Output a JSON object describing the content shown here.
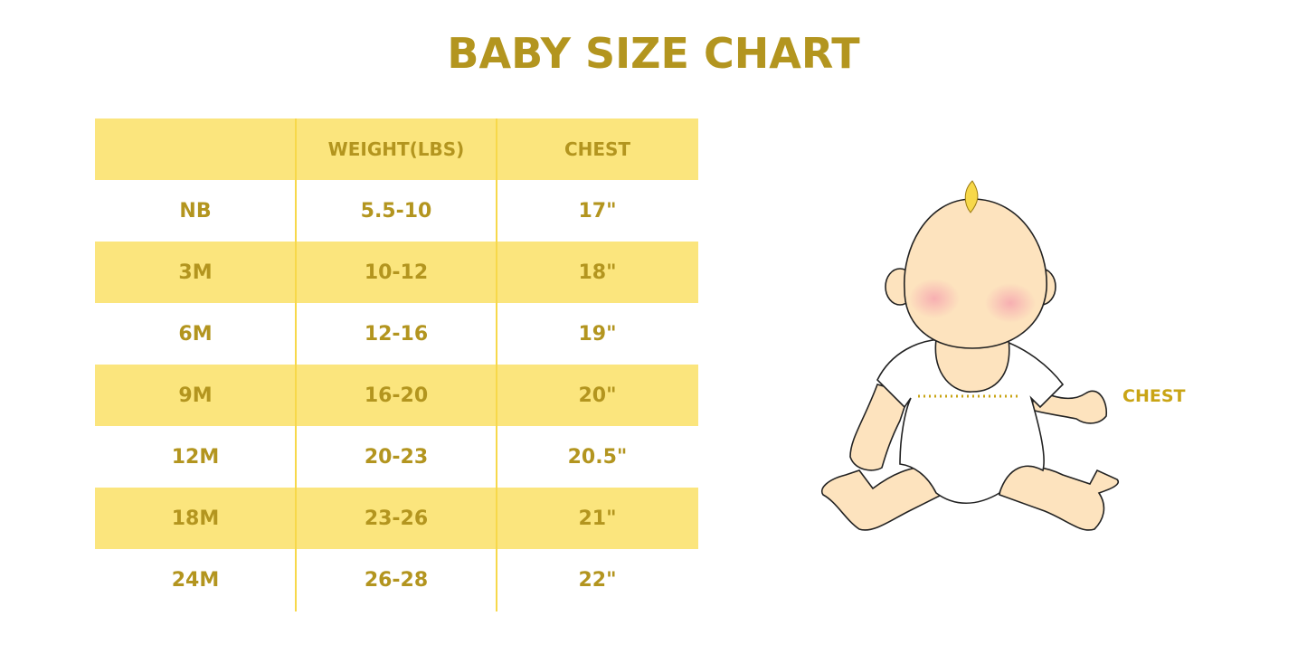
{
  "title": "BABY SIZE CHART",
  "table": {
    "headers": [
      "",
      "WEIGHT(LBS)",
      "CHEST"
    ],
    "rows": [
      [
        "NB",
        "5.5-10",
        "17\""
      ],
      [
        "3M",
        "10-12",
        "18\""
      ],
      [
        "6M",
        "12-16",
        "19\""
      ],
      [
        "9M",
        "16-20",
        "20\""
      ],
      [
        "12M",
        "20-23",
        "20.5\""
      ],
      [
        "18M",
        "23-26",
        "21\""
      ],
      [
        "24M",
        "26-28",
        "22\""
      ]
    ]
  },
  "illustration": {
    "chest_label": "CHEST"
  },
  "colors": {
    "accent_text": "#B3951F",
    "row_shade": "#FBE57D",
    "skin": "#FDE3BE"
  }
}
